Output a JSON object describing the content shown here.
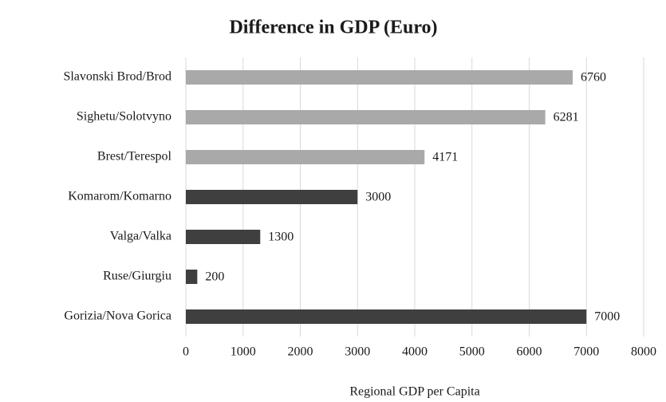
{
  "chart_data": {
    "type": "hbar",
    "title": "Difference in GDP (Euro)",
    "x_label": "Regional GDP per Capita",
    "categories": [
      "Slavonski Brod/Brod",
      "Sighetu/Solotvyno",
      "Brest/Terespol",
      "Komarom/Komarno",
      "Valga/Valka",
      "Ruse/Giurgiu",
      "Gorizia/Nova Gorica"
    ],
    "values": [
      6760,
      6281,
      4171,
      3000,
      1300,
      200,
      7000
    ],
    "colors": [
      "#a9a9a9",
      "#a9a9a9",
      "#a9a9a9",
      "#3f3f3f",
      "#3f3f3f",
      "#3f3f3f",
      "#3f3f3f"
    ],
    "xlim": [
      0,
      8000
    ],
    "xticks": [
      0,
      1000,
      2000,
      3000,
      4000,
      5000,
      6000,
      7000,
      8000
    ],
    "grid": true
  }
}
